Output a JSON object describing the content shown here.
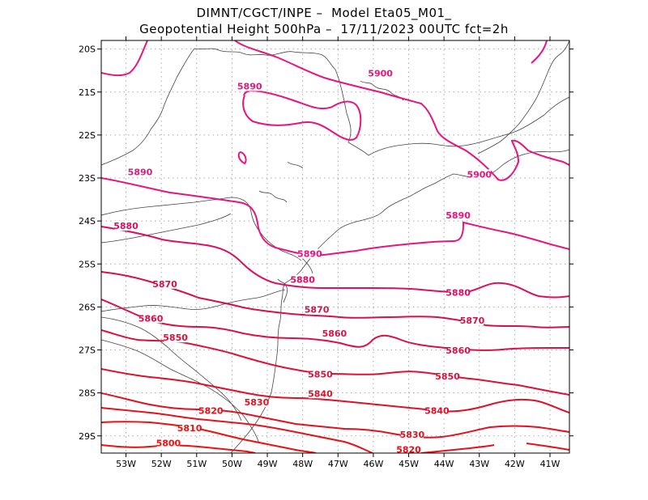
{
  "title": {
    "line1": "DIMNT/CGCT/INPE –  Model Eta05_M01_",
    "line2": "Geopotential Height 500hPa –  17/11/2023 00UTC fct=2h"
  },
  "map": {
    "lon_range": [
      -53.7,
      -40.45
    ],
    "lat_range": [
      -29.4,
      -19.8
    ],
    "lat_ticks": [
      {
        "value": -20,
        "label": "20S"
      },
      {
        "value": -21,
        "label": "21S"
      },
      {
        "value": -22,
        "label": "22S"
      },
      {
        "value": -23,
        "label": "23S"
      },
      {
        "value": -24,
        "label": "24S"
      },
      {
        "value": -25,
        "label": "25S"
      },
      {
        "value": -26,
        "label": "26S"
      },
      {
        "value": -27,
        "label": "27S"
      },
      {
        "value": -28,
        "label": "28S"
      },
      {
        "value": -29,
        "label": "29S"
      }
    ],
    "lon_ticks": [
      {
        "value": -53,
        "label": "53W"
      },
      {
        "value": -52,
        "label": "52W"
      },
      {
        "value": -51,
        "label": "51W"
      },
      {
        "value": -50,
        "label": "50W"
      },
      {
        "value": -49,
        "label": "49W"
      },
      {
        "value": -48,
        "label": "48W"
      },
      {
        "value": -47,
        "label": "47W"
      },
      {
        "value": -46,
        "label": "46W"
      },
      {
        "value": -45,
        "label": "45W"
      },
      {
        "value": -44,
        "label": "44W"
      },
      {
        "value": -43,
        "label": "43W"
      },
      {
        "value": -42,
        "label": "42W"
      },
      {
        "value": -41,
        "label": "41W"
      }
    ],
    "grid": true,
    "colors": {
      "c5900": "#e8157a",
      "c5890": "#e8157a",
      "c5880": "#dd1060",
      "c5870": "#d81048",
      "c5860": "#dc1045",
      "c5850": "#e01038",
      "c5840": "#e01028",
      "c5830": "#e31020",
      "c5820": "#e8101a",
      "c5810": "#ec1010",
      "c5800": "#f01010",
      "coast": "#444444"
    }
  },
  "contour_labels": [
    {
      "text": "5900",
      "lon": -45.8,
      "lat": -20.6,
      "color": "#e8157a"
    },
    {
      "text": "5900",
      "lon": -43.0,
      "lat": -22.95,
      "color": "#e8157a"
    },
    {
      "text": "5890",
      "lon": -49.5,
      "lat": -20.9,
      "color": "#e8157a"
    },
    {
      "text": "5890",
      "lon": -52.6,
      "lat": -22.9,
      "color": "#e8157a"
    },
    {
      "text": "5890",
      "lon": -43.6,
      "lat": -23.9,
      "color": "#e8157a"
    },
    {
      "text": "5890",
      "lon": -47.8,
      "lat": -24.8,
      "color": "#e8157a"
    },
    {
      "text": "5880",
      "lon": -53.0,
      "lat": -24.15,
      "color": "#dd1060"
    },
    {
      "text": "5880",
      "lon": -48.0,
      "lat": -25.4,
      "color": "#dd1060"
    },
    {
      "text": "5880",
      "lon": -43.6,
      "lat": -25.7,
      "color": "#dd1060"
    },
    {
      "text": "5870",
      "lon": -51.9,
      "lat": -25.5,
      "color": "#d81048"
    },
    {
      "text": "5870",
      "lon": -47.6,
      "lat": -26.1,
      "color": "#d81048"
    },
    {
      "text": "5870",
      "lon": -43.2,
      "lat": -26.35,
      "color": "#d81048"
    },
    {
      "text": "5860",
      "lon": -52.3,
      "lat": -26.3,
      "color": "#dc1045"
    },
    {
      "text": "5860",
      "lon": -47.1,
      "lat": -26.65,
      "color": "#dc1045"
    },
    {
      "text": "5860",
      "lon": -43.6,
      "lat": -27.05,
      "color": "#dc1045"
    },
    {
      "text": "5850",
      "lon": -51.6,
      "lat": -26.75,
      "color": "#e01038"
    },
    {
      "text": "5850",
      "lon": -47.5,
      "lat": -27.6,
      "color": "#e01038"
    },
    {
      "text": "5850",
      "lon": -43.9,
      "lat": -27.65,
      "color": "#e01038"
    },
    {
      "text": "5840",
      "lon": -47.5,
      "lat": -28.05,
      "color": "#e01028"
    },
    {
      "text": "5840",
      "lon": -44.2,
      "lat": -28.45,
      "color": "#e01028"
    },
    {
      "text": "5830",
      "lon": -49.3,
      "lat": -28.25,
      "color": "#e31020"
    },
    {
      "text": "5830",
      "lon": -44.9,
      "lat": -29.0,
      "color": "#e31020"
    },
    {
      "text": "5820",
      "lon": -50.6,
      "lat": -28.45,
      "color": "#e8101a"
    },
    {
      "text": "5820",
      "lon": -45.0,
      "lat": -29.35,
      "color": "#e8101a"
    },
    {
      "text": "5810",
      "lon": -51.2,
      "lat": -28.85,
      "color": "#ec1010"
    },
    {
      "text": "5800",
      "lon": -51.8,
      "lat": -29.2,
      "color": "#f01010"
    }
  ]
}
